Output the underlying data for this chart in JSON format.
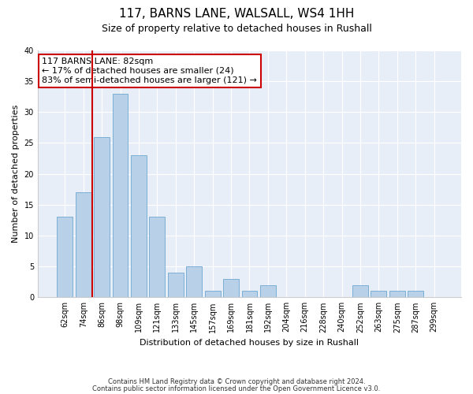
{
  "title1": "117, BARNS LANE, WALSALL, WS4 1HH",
  "title2": "Size of property relative to detached houses in Rushall",
  "xlabel": "Distribution of detached houses by size in Rushall",
  "ylabel": "Number of detached properties",
  "categories": [
    "62sqm",
    "74sqm",
    "86sqm",
    "98sqm",
    "109sqm",
    "121sqm",
    "133sqm",
    "145sqm",
    "157sqm",
    "169sqm",
    "181sqm",
    "192sqm",
    "204sqm",
    "216sqm",
    "228sqm",
    "240sqm",
    "252sqm",
    "263sqm",
    "275sqm",
    "287sqm",
    "299sqm"
  ],
  "values": [
    13,
    17,
    26,
    33,
    23,
    13,
    4,
    5,
    1,
    3,
    1,
    2,
    0,
    0,
    0,
    0,
    2,
    1,
    1,
    1,
    0
  ],
  "bar_color": "#b8d0e8",
  "bar_edge_color": "#7aafd4",
  "vline_x": 1.5,
  "vline_color": "#cc0000",
  "annotation_text": "117 BARNS LANE: 82sqm\n← 17% of detached houses are smaller (24)\n83% of semi-detached houses are larger (121) →",
  "annotation_box_facecolor": "#ffffff",
  "annotation_box_edgecolor": "#cc0000",
  "ylim": [
    0,
    40
  ],
  "yticks": [
    0,
    5,
    10,
    15,
    20,
    25,
    30,
    35,
    40
  ],
  "footer1": "Contains HM Land Registry data © Crown copyright and database right 2024.",
  "footer2": "Contains public sector information licensed under the Open Government Licence v3.0.",
  "bg_color": "#ffffff",
  "plot_bg_color": "#e8eef8",
  "grid_color": "#ffffff",
  "title1_fontsize": 11,
  "title2_fontsize": 9,
  "ylabel_fontsize": 8,
  "xlabel_fontsize": 8,
  "tick_fontsize": 7,
  "footer_fontsize": 6,
  "annotation_fontsize": 8
}
